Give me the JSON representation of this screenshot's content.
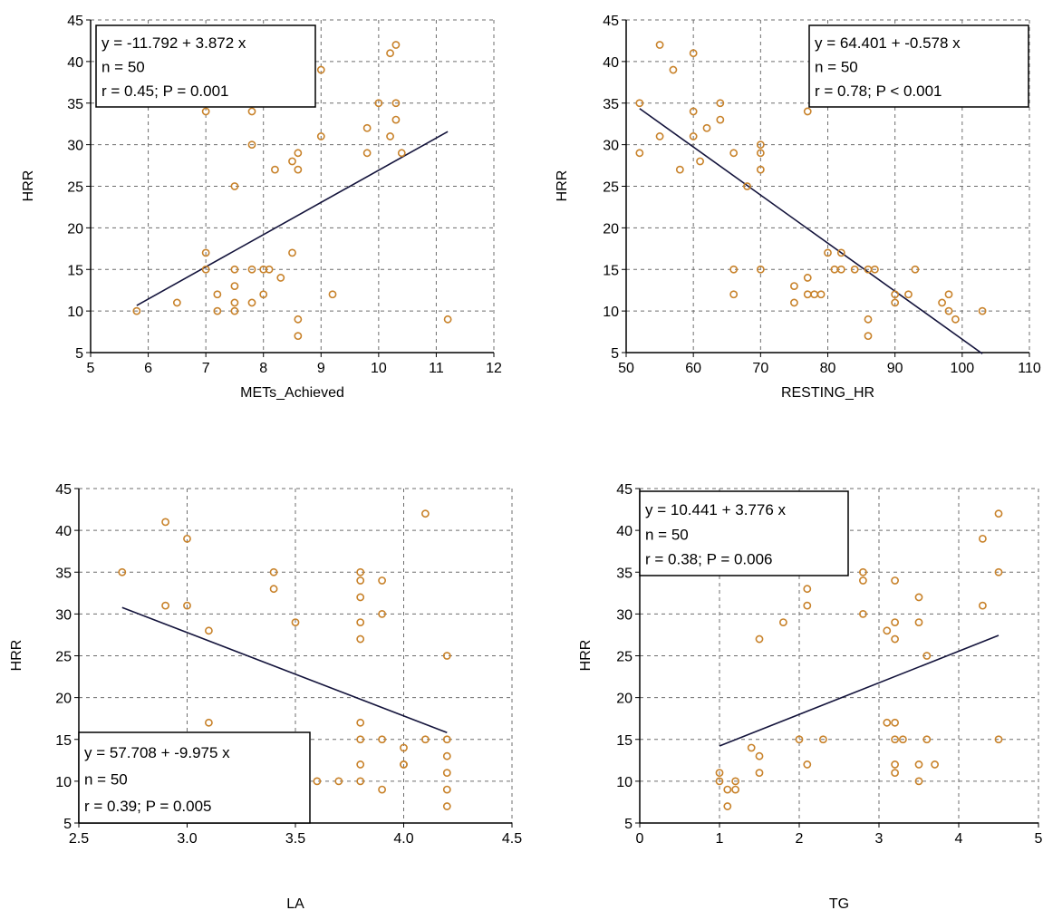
{
  "chart_data": [
    {
      "type": "scatter",
      "xlabel": "METs_Achieved",
      "ylabel": "HRR",
      "xlim": [
        5,
        12
      ],
      "ylim": [
        5,
        45
      ],
      "xticks": [
        "5",
        "6",
        "7",
        "8",
        "9",
        "10",
        "11",
        "12"
      ],
      "yticks": [
        "5",
        "10",
        "15",
        "20",
        "25",
        "30",
        "35",
        "40",
        "45"
      ],
      "grid": true,
      "annotation_position": "top-left",
      "annotation": [
        "y = -11.792  +  3.872  x",
        "n = 50",
        "r = 0.45;  P = 0.001"
      ],
      "regression": {
        "intercept": -11.792,
        "slope": 3.872,
        "x_range": [
          5.8,
          11.2
        ]
      },
      "points": [
        [
          5.8,
          10
        ],
        [
          6.5,
          11
        ],
        [
          7.0,
          17
        ],
        [
          7.0,
          15
        ],
        [
          7.0,
          34
        ],
        [
          7.2,
          12
        ],
        [
          7.2,
          10
        ],
        [
          7.5,
          25
        ],
        [
          7.5,
          15
        ],
        [
          7.5,
          13
        ],
        [
          7.5,
          11
        ],
        [
          7.5,
          10
        ],
        [
          7.8,
          34
        ],
        [
          7.8,
          30
        ],
        [
          7.8,
          15
        ],
        [
          7.8,
          11
        ],
        [
          8.0,
          15
        ],
        [
          8.0,
          12
        ],
        [
          8.1,
          15
        ],
        [
          8.2,
          27
        ],
        [
          8.3,
          14
        ],
        [
          8.5,
          28
        ],
        [
          8.5,
          17
        ],
        [
          8.6,
          29
        ],
        [
          8.6,
          27
        ],
        [
          8.6,
          9
        ],
        [
          8.6,
          7
        ],
        [
          9.0,
          39
        ],
        [
          9.0,
          31
        ],
        [
          9.2,
          12
        ],
        [
          9.8,
          32
        ],
        [
          9.8,
          29
        ],
        [
          10.0,
          35
        ],
        [
          10.2,
          41
        ],
        [
          10.2,
          31
        ],
        [
          10.3,
          42
        ],
        [
          10.3,
          35
        ],
        [
          10.3,
          33
        ],
        [
          10.4,
          29
        ],
        [
          11.2,
          9
        ]
      ]
    },
    {
      "type": "scatter",
      "xlabel": "RESTING_HR",
      "ylabel": "HRR",
      "xlim": [
        50,
        110
      ],
      "ylim": [
        5,
        45
      ],
      "xticks": [
        "50",
        "60",
        "70",
        "80",
        "90",
        "100",
        "110"
      ],
      "yticks": [
        "5",
        "10",
        "15",
        "20",
        "25",
        "30",
        "35",
        "40",
        "45"
      ],
      "grid": true,
      "annotation_position": "top-right",
      "annotation": [
        "y = 64.401  +  -0.578  x",
        "n = 50",
        "r = 0.78;  P < 0.001"
      ],
      "regression": {
        "intercept": 64.401,
        "slope": -0.578,
        "x_range": [
          52,
          103
        ]
      },
      "points": [
        [
          52,
          35
        ],
        [
          52,
          29
        ],
        [
          55,
          42
        ],
        [
          55,
          31
        ],
        [
          57,
          39
        ],
        [
          58,
          27
        ],
        [
          60,
          41
        ],
        [
          60,
          34
        ],
        [
          60,
          31
        ],
        [
          61,
          28
        ],
        [
          62,
          32
        ],
        [
          64,
          35
        ],
        [
          64,
          33
        ],
        [
          66,
          29
        ],
        [
          66,
          15
        ],
        [
          66,
          12
        ],
        [
          68,
          25
        ],
        [
          70,
          30
        ],
        [
          70,
          29
        ],
        [
          70,
          27
        ],
        [
          70,
          15
        ],
        [
          75,
          13
        ],
        [
          75,
          11
        ],
        [
          77,
          34
        ],
        [
          77,
          14
        ],
        [
          77,
          12
        ],
        [
          78,
          12
        ],
        [
          79,
          12
        ],
        [
          80,
          17
        ],
        [
          81,
          15
        ],
        [
          82,
          17
        ],
        [
          82,
          15
        ],
        [
          84,
          15
        ],
        [
          86,
          15
        ],
        [
          86,
          9
        ],
        [
          86,
          7
        ],
        [
          87,
          15
        ],
        [
          90,
          11
        ],
        [
          90,
          12
        ],
        [
          92,
          12
        ],
        [
          93,
          15
        ],
        [
          97,
          11
        ],
        [
          98,
          12
        ],
        [
          98,
          10
        ],
        [
          99,
          9
        ],
        [
          103,
          10
        ]
      ]
    },
    {
      "type": "scatter",
      "xlabel": "LA",
      "ylabel": "HRR",
      "xlim": [
        2.5,
        4.5
      ],
      "ylim": [
        5,
        45
      ],
      "xticks": [
        "2.5",
        "3.0",
        "3.5",
        "4.0",
        "4.5"
      ],
      "yticks": [
        "5",
        "10",
        "15",
        "20",
        "25",
        "30",
        "35",
        "40",
        "45"
      ],
      "grid": true,
      "annotation_position": "bottom-left",
      "annotation": [
        "y = 57.708  +  -9.975  x",
        "n = 50",
        "r = 0.39;  P = 0.005"
      ],
      "regression": {
        "intercept": 57.708,
        "slope": -9.975,
        "x_range": [
          2.7,
          4.2
        ]
      },
      "points": [
        [
          2.7,
          35
        ],
        [
          2.9,
          41
        ],
        [
          2.9,
          31
        ],
        [
          3.0,
          39
        ],
        [
          3.0,
          31
        ],
        [
          3.1,
          28
        ],
        [
          3.1,
          17
        ],
        [
          3.4,
          35
        ],
        [
          3.4,
          33
        ],
        [
          3.5,
          29
        ],
        [
          3.6,
          10
        ],
        [
          3.7,
          10
        ],
        [
          3.8,
          35
        ],
        [
          3.8,
          34
        ],
        [
          3.8,
          32
        ],
        [
          3.8,
          29
        ],
        [
          3.8,
          27
        ],
        [
          3.8,
          17
        ],
        [
          3.8,
          15
        ],
        [
          3.8,
          12
        ],
        [
          3.8,
          10
        ],
        [
          3.9,
          34
        ],
        [
          3.9,
          30
        ],
        [
          3.9,
          15
        ],
        [
          3.9,
          9
        ],
        [
          4.0,
          14
        ],
        [
          4.0,
          12
        ],
        [
          4.0,
          12
        ],
        [
          4.1,
          42
        ],
        [
          4.1,
          15
        ],
        [
          4.2,
          25
        ],
        [
          4.2,
          15
        ],
        [
          4.2,
          13
        ],
        [
          4.2,
          11
        ],
        [
          4.2,
          9
        ],
        [
          4.2,
          7
        ]
      ]
    },
    {
      "type": "scatter",
      "xlabel": "TG",
      "ylabel": "HRR",
      "xlim": [
        0,
        5
      ],
      "ylim": [
        5,
        45
      ],
      "xticks": [
        "0",
        "1",
        "2",
        "3",
        "4",
        "5"
      ],
      "yticks": [
        "5",
        "10",
        "15",
        "20",
        "25",
        "30",
        "35",
        "40",
        "45"
      ],
      "grid": true,
      "annotation_position": "top-left",
      "annotation": [
        "y = 10.441  +  3.776  x",
        "n = 50",
        "r = 0.38;  P = 0.006"
      ],
      "regression": {
        "intercept": 10.441,
        "slope": 3.776,
        "x_range": [
          1.0,
          4.5
        ]
      },
      "points": [
        [
          1.0,
          11
        ],
        [
          1.0,
          10
        ],
        [
          1.1,
          9
        ],
        [
          1.1,
          7
        ],
        [
          1.2,
          10
        ],
        [
          1.2,
          9
        ],
        [
          1.4,
          14
        ],
        [
          1.5,
          13
        ],
        [
          1.5,
          11
        ],
        [
          1.5,
          27
        ],
        [
          1.8,
          29
        ],
        [
          2.0,
          15
        ],
        [
          2.1,
          33
        ],
        [
          2.1,
          31
        ],
        [
          2.1,
          12
        ],
        [
          2.3,
          15
        ],
        [
          2.8,
          35
        ],
        [
          2.8,
          34
        ],
        [
          2.8,
          30
        ],
        [
          3.1,
          28
        ],
        [
          3.1,
          17
        ],
        [
          3.2,
          34
        ],
        [
          3.2,
          29
        ],
        [
          3.2,
          27
        ],
        [
          3.2,
          17
        ],
        [
          3.2,
          15
        ],
        [
          3.2,
          12
        ],
        [
          3.2,
          11
        ],
        [
          3.3,
          15
        ],
        [
          3.5,
          32
        ],
        [
          3.5,
          29
        ],
        [
          3.5,
          12
        ],
        [
          3.5,
          10
        ],
        [
          3.6,
          25
        ],
        [
          3.6,
          15
        ],
        [
          3.7,
          12
        ],
        [
          4.3,
          39
        ],
        [
          4.3,
          31
        ],
        [
          4.5,
          42
        ],
        [
          4.5,
          35
        ],
        [
          4.5,
          15
        ]
      ]
    }
  ],
  "colors": {
    "marker": "#c8822a",
    "grid": "#6d6d6d",
    "regression_line": "#14143c",
    "axis": "#000000"
  }
}
